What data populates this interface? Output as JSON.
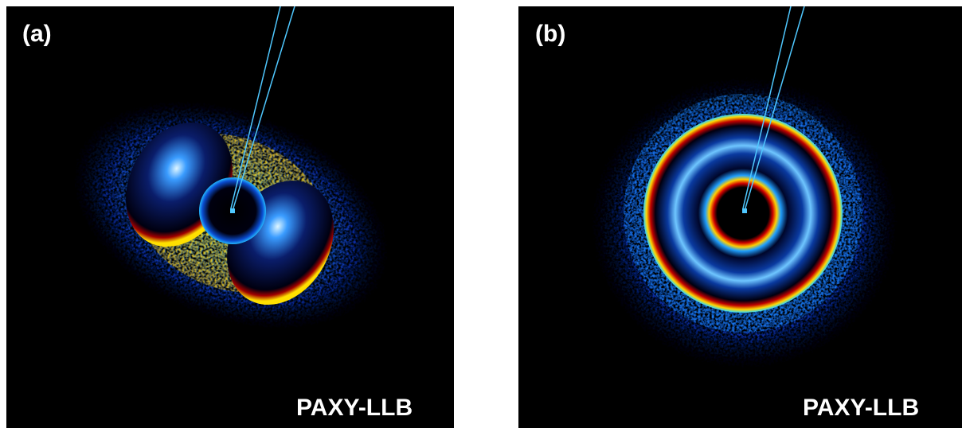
{
  "panels": [
    {
      "label": "(a)",
      "caption": "PAXY-LLB"
    },
    {
      "label": "(b)",
      "caption": "PAXY-LLB"
    }
  ]
}
